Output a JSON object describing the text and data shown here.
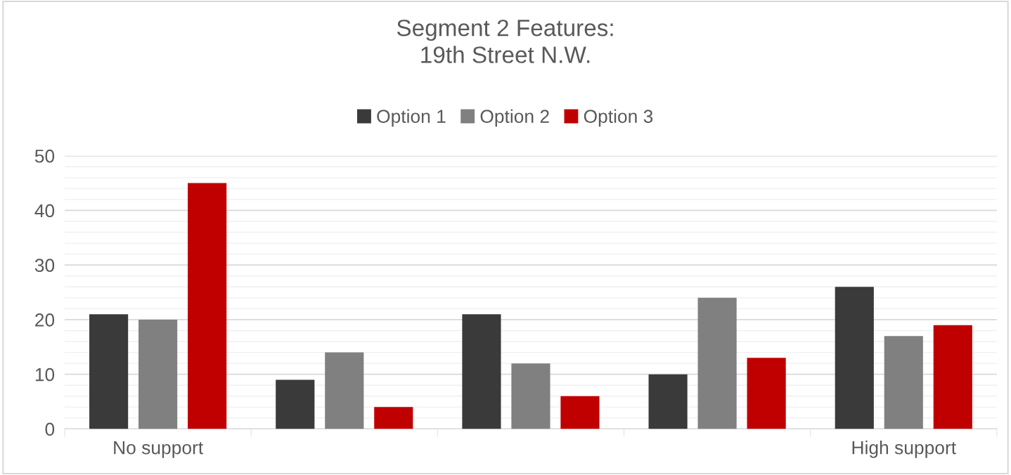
{
  "chart_data": {
    "type": "bar",
    "title": "Segment 2 Features:\n19th Street N.W.",
    "categories": [
      "No support",
      null,
      null,
      null,
      "High support"
    ],
    "series": [
      {
        "name": "Option 1",
        "color": "#3a3a3a",
        "values": [
          21,
          9,
          21,
          10,
          26
        ]
      },
      {
        "name": "Option 2",
        "color": "#808080",
        "values": [
          20,
          14,
          12,
          24,
          17
        ]
      },
      {
        "name": "Option 3",
        "color": "#c00000",
        "values": [
          45,
          4,
          6,
          13,
          19
        ]
      }
    ],
    "ylim": [
      0,
      50
    ],
    "yticks": [
      0,
      10,
      20,
      30,
      40,
      50
    ],
    "grid": "y",
    "legend": "top"
  }
}
